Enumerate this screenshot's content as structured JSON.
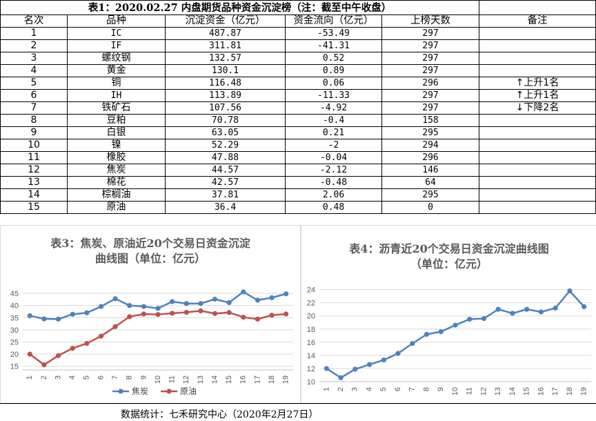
{
  "table": {
    "title": "表1：2020.02.27 内盘期货品种资金沉淀榜（注：截至中午收盘）",
    "headers": [
      "名次",
      "品种",
      "沉淀资金（亿元）",
      "资金流向（亿元）",
      "上榜天数",
      "备注"
    ],
    "rows": [
      {
        "rank": "1",
        "name": "IC",
        "capital": "487.87",
        "flow": "-53.49",
        "days": "297",
        "note": ""
      },
      {
        "rank": "2",
        "name": "IF",
        "capital": "311.81",
        "flow": "-41.31",
        "days": "297",
        "note": ""
      },
      {
        "rank": "3",
        "name": "螺纹钢",
        "capital": "132.57",
        "flow": "0.52",
        "days": "297",
        "note": ""
      },
      {
        "rank": "4",
        "name": "黄金",
        "capital": "130.1",
        "flow": "0.89",
        "days": "297",
        "note": ""
      },
      {
        "rank": "5",
        "name": "铜",
        "capital": "116.48",
        "flow": "0.06",
        "days": "296",
        "note": "上升1名",
        "note_dir": "up"
      },
      {
        "rank": "6",
        "name": "IH",
        "capital": "113.89",
        "flow": "-11.33",
        "days": "297",
        "note": "上升1名",
        "note_dir": "up"
      },
      {
        "rank": "7",
        "name": "铁矿石",
        "capital": "107.56",
        "flow": "-4.92",
        "days": "297",
        "note": "下降2名",
        "note_dir": "down"
      },
      {
        "rank": "8",
        "name": "豆粕",
        "capital": "70.78",
        "flow": "-0.4",
        "days": "158",
        "note": ""
      },
      {
        "rank": "9",
        "name": "白银",
        "capital": "63.05",
        "flow": "0.21",
        "days": "295",
        "note": ""
      },
      {
        "rank": "10",
        "name": "镍",
        "capital": "52.29",
        "flow": "-2",
        "days": "294",
        "note": ""
      },
      {
        "rank": "11",
        "name": "橡胶",
        "capital": "47.88",
        "flow": "-0.04",
        "days": "296",
        "note": ""
      },
      {
        "rank": "12",
        "name": "焦炭",
        "capital": "44.57",
        "flow": "-2.12",
        "days": "146",
        "note": ""
      },
      {
        "rank": "13",
        "name": "棉花",
        "capital": "42.57",
        "flow": "-0.48",
        "days": "64",
        "note": ""
      },
      {
        "rank": "14",
        "name": "棕榈油",
        "capital": "37.81",
        "flow": "2.06",
        "days": "295",
        "note": ""
      },
      {
        "rank": "15",
        "name": "原油",
        "capital": "36.4",
        "flow": "0.48",
        "days": "0",
        "note": ""
      }
    ]
  },
  "chart_data": [
    {
      "type": "line",
      "title_line1": "表3：焦炭、原油近20个交易日资金沉淀",
      "title_line2": "曲线图（单位：亿元）",
      "x": [
        "1",
        "2",
        "3",
        "4",
        "5",
        "6",
        "7",
        "8",
        "9",
        "10",
        "11",
        "12",
        "13",
        "14",
        "15",
        "16",
        "17",
        "18",
        "19"
      ],
      "series": [
        {
          "name": "焦炭",
          "color": "#4f81bd",
          "values": [
            35.8,
            34.5,
            34.4,
            36.4,
            37.0,
            39.6,
            42.8,
            40.0,
            39.6,
            38.8,
            41.6,
            40.8,
            40.8,
            42.6,
            41.2,
            45.6,
            42.2,
            43.2,
            44.8
          ]
        },
        {
          "name": "原油",
          "color": "#c0504d",
          "values": [
            20.0,
            15.6,
            19.4,
            22.4,
            24.4,
            27.4,
            31.3,
            35.4,
            36.5,
            36.3,
            36.8,
            37.2,
            37.8,
            36.7,
            37.1,
            35.2,
            34.4,
            36.0,
            36.5
          ]
        }
      ],
      "yticks": [
        15,
        20,
        25,
        30,
        35,
        40,
        45
      ],
      "ylim": [
        13.5,
        47
      ]
    },
    {
      "type": "line",
      "title_line1": "表4：沥青近20个交易日资金沉淀曲线图",
      "title_line2": "（单位：亿元）",
      "x": [
        "1",
        "2",
        "3",
        "4",
        "5",
        "6",
        "7",
        "8",
        "9",
        "10",
        "11",
        "12",
        "13",
        "14",
        "15",
        "16",
        "17",
        "18",
        "19"
      ],
      "series": [
        {
          "name": "",
          "color": "#4f81bd",
          "values": [
            12.0,
            10.6,
            11.9,
            12.6,
            13.3,
            14.3,
            15.8,
            17.2,
            17.6,
            18.6,
            19.5,
            19.6,
            21.0,
            20.4,
            21.0,
            20.6,
            21.2,
            23.8,
            21.4
          ]
        }
      ],
      "yticks": [
        10,
        12,
        14,
        16,
        18,
        20,
        22,
        24
      ],
      "ylim": [
        10,
        24.8
      ]
    }
  ],
  "footer": "数据统计：七禾研究中心（2020年2月27日）"
}
